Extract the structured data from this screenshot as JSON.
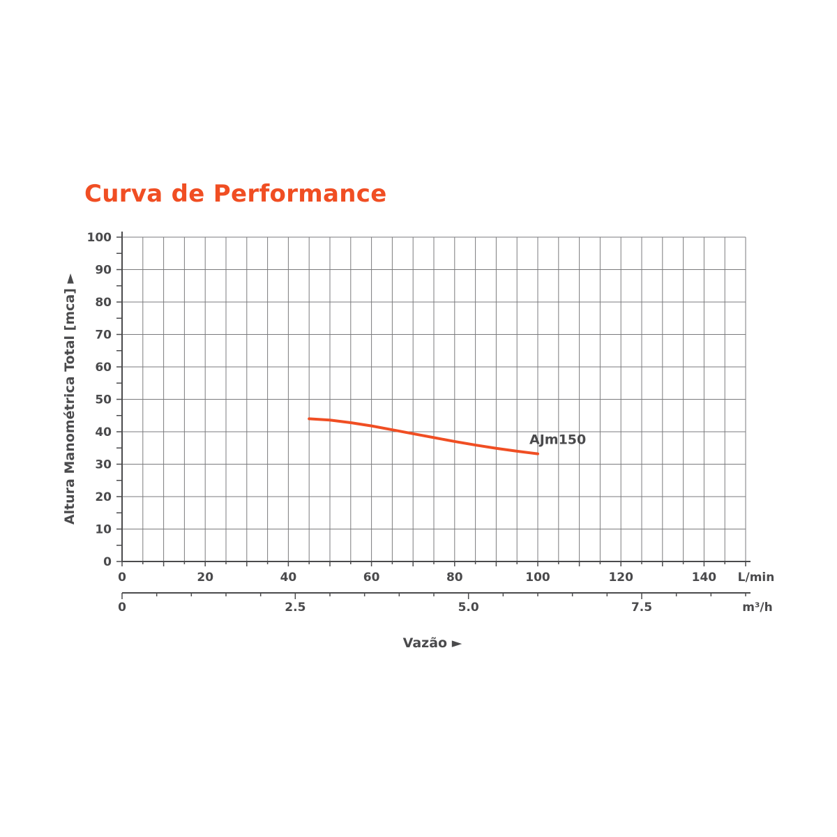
{
  "colors": {
    "title": "#f04e23",
    "series": "#f04e23",
    "axis": "#4a4a4c",
    "grid": "#7a7a7c",
    "text": "#4a4a4c"
  },
  "chart_data": {
    "type": "line",
    "title": "Curva de Performance",
    "xlabel": "Vazão ►",
    "ylabel": "Altura Manométrica Total [mca] ►",
    "xlim": [
      0,
      150
    ],
    "ylim": [
      0,
      100
    ],
    "x_unit": "L/min",
    "x2_unit": "m³/h",
    "x_ticks": [
      0,
      20,
      40,
      60,
      80,
      100,
      120,
      140
    ],
    "x2_ticks": [
      "0",
      "2.5",
      "5.0",
      "7.5"
    ],
    "x2_tick_values_lmin": [
      0,
      41.67,
      83.33,
      125
    ],
    "y_ticks": [
      0,
      10,
      20,
      30,
      40,
      50,
      60,
      70,
      80,
      90,
      100
    ],
    "grid": true,
    "series": [
      {
        "name": "AJm150",
        "x": [
          45,
          50,
          55,
          60,
          65,
          70,
          75,
          80,
          85,
          90,
          95,
          100
        ],
        "y": [
          44,
          43.6,
          42.8,
          41.8,
          40.6,
          39.4,
          38.2,
          37.0,
          35.9,
          34.9,
          34.0,
          33.2
        ]
      }
    ]
  }
}
